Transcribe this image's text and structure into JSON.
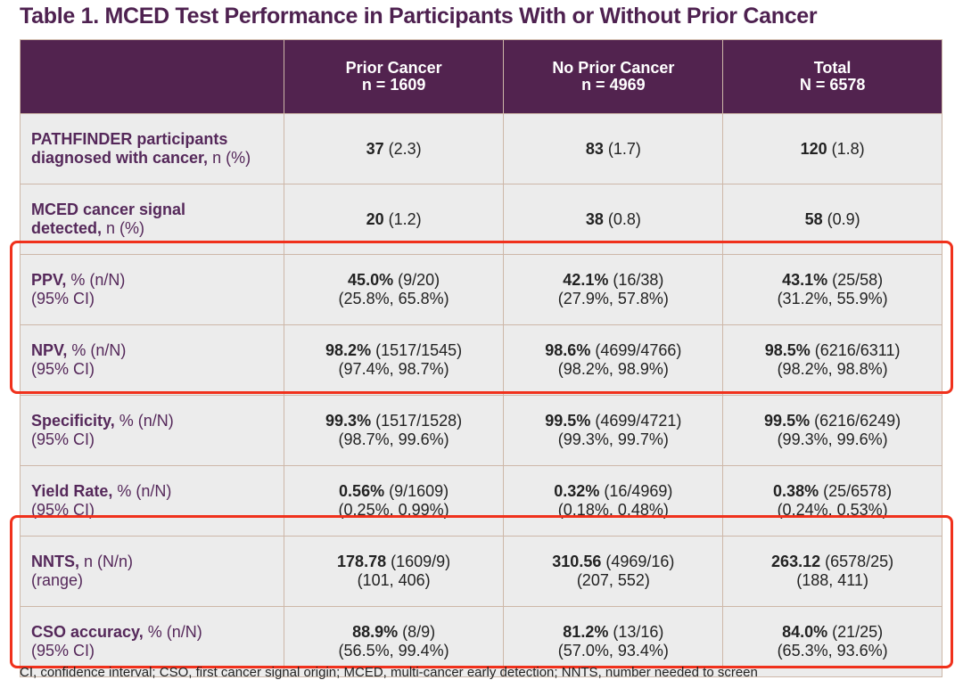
{
  "title": "Table 1. MCED Test Performance in Participants With or Without Prior Cancer",
  "headers": [
    {
      "l1": "",
      "l2": ""
    },
    {
      "l1": "Prior Cancer",
      "l2": "n = 1609"
    },
    {
      "l1": "No Prior Cancer",
      "l2": "n = 4969"
    },
    {
      "l1": "Total",
      "l2": "N = 6578"
    }
  ],
  "rows": [
    {
      "lb": "PATHFINDER participants",
      "lb2": "diagnosed with cancer,",
      "lr": " n (%)",
      "cells": [
        {
          "b": "37",
          "r": " (2.3)",
          "l2": ""
        },
        {
          "b": "83",
          "r": " (1.7)",
          "l2": ""
        },
        {
          "b": "120",
          "r": " (1.8)",
          "l2": ""
        }
      ]
    },
    {
      "lb": "MCED cancer signal",
      "lb2": "detected,",
      "lr": " n (%)",
      "cells": [
        {
          "b": "20",
          "r": " (1.2)",
          "l2": ""
        },
        {
          "b": "38",
          "r": " (0.8)",
          "l2": ""
        },
        {
          "b": "58",
          "r": " (0.9)",
          "l2": ""
        }
      ]
    },
    {
      "lb": "PPV,",
      "lr": " % (n/N)",
      "l2": "(95% CI)",
      "cells": [
        {
          "b": "45.0%",
          "r": " (9/20)",
          "l2": "(25.8%, 65.8%)"
        },
        {
          "b": "42.1%",
          "r": " (16/38)",
          "l2": "(27.9%, 57.8%)"
        },
        {
          "b": "43.1%",
          "r": " (25/58)",
          "l2": "(31.2%, 55.9%)"
        }
      ]
    },
    {
      "lb": "NPV,",
      "lr": " % (n/N)",
      "l2": "(95% CI)",
      "cells": [
        {
          "b": "98.2%",
          "r": " (1517/1545)",
          "l2": "(97.4%, 98.7%)"
        },
        {
          "b": "98.6%",
          "r": " (4699/4766)",
          "l2": "(98.2%, 98.9%)"
        },
        {
          "b": "98.5%",
          "r": " (6216/6311)",
          "l2": "(98.2%, 98.8%)"
        }
      ]
    },
    {
      "lb": "Specificity,",
      "lr": " % (n/N)",
      "l2": "(95% CI)",
      "cells": [
        {
          "b": "99.3%",
          "r": " (1517/1528)",
          "l2": "(98.7%, 99.6%)"
        },
        {
          "b": "99.5%",
          "r": " (4699/4721)",
          "l2": "(99.3%, 99.7%)"
        },
        {
          "b": "99.5%",
          "r": " (6216/6249)",
          "l2": "(99.3%, 99.6%)"
        }
      ]
    },
    {
      "lb": "Yield Rate,",
      "lr": " % (n/N)",
      "l2": "(95% CI)",
      "cells": [
        {
          "b": "0.56%",
          "r": " (9/1609)",
          "l2": "(0.25%, 0.99%)"
        },
        {
          "b": "0.32%",
          "r": " (16/4969)",
          "l2": "(0.18%, 0.48%)"
        },
        {
          "b": "0.38%",
          "r": " (25/6578)",
          "l2": "(0.24%, 0.53%)"
        }
      ]
    },
    {
      "lb": "NNTS,",
      "lr": " n (N/n)",
      "l2": "(range)",
      "cells": [
        {
          "b": "178.78",
          "r": " (1609/9)",
          "l2": "(101, 406)"
        },
        {
          "b": "310.56",
          "r": " (4969/16)",
          "l2": "(207, 552)"
        },
        {
          "b": "263.12",
          "r": " (6578/25)",
          "l2": "(188, 411)"
        }
      ]
    },
    {
      "lb": "CSO accuracy,",
      "lr": " % (n/N)",
      "l2": "(95% CI)",
      "cells": [
        {
          "b": "88.9%",
          "r": " (8/9)",
          "l2": "(56.5%, 99.4%)"
        },
        {
          "b": "81.2%",
          "r": " (13/16)",
          "l2": "(57.0%, 93.4%)"
        },
        {
          "b": "84.0%",
          "r": " (21/25)",
          "l2": "(65.3%, 93.6%)"
        }
      ]
    }
  ],
  "footnote": "CI, confidence interval; CSO, first cancer signal origin; MCED, multi-cancer early detection; NNTS, number needed to screen"
}
